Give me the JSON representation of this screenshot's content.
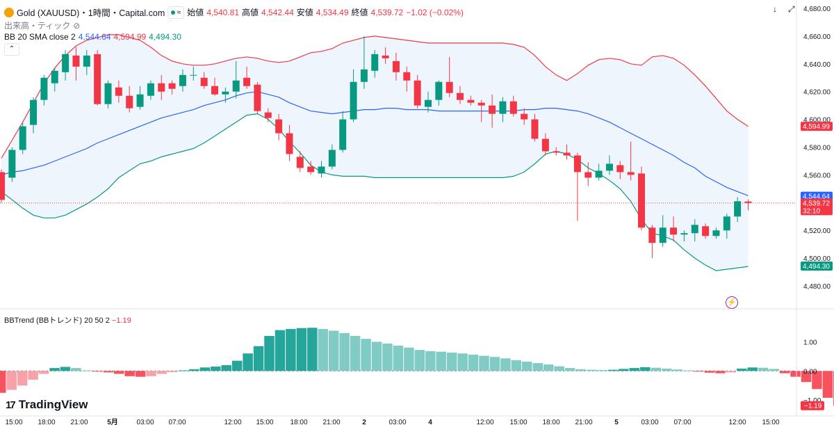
{
  "header": {
    "title": "Gold (XAUUSD)・1時間・Capital.com",
    "open_label": "始値",
    "open_value": "4,540.81",
    "high_label": "高値",
    "high_value": "4,542.44",
    "low_label": "安値",
    "low_value": "4,534.49",
    "close_label": "終値",
    "close_value": "4,539.72",
    "change": "−1.02 (−0.02%)",
    "volume_label": "出来高・ティック",
    "bb_label": "BB 20 SMA close 2",
    "bb_basis": "4,544.64",
    "bb_upper": "4,594.99",
    "bb_lower": "4,494.30",
    "collapse_icon": "chevron-up-icon"
  },
  "indicator": {
    "label": "BBTrend (BBトレンド) 20 50 2",
    "value": "−1.19"
  },
  "branding": {
    "logo_text": "TradingView"
  },
  "colors": {
    "up": "#089981",
    "down": "#f23645",
    "basis": "#2962ff",
    "upper": "#f23645",
    "lower": "#089981",
    "band_fill": "#eef5fc"
  },
  "chart_data": [
    {
      "type": "candlestick",
      "title": "Gold (XAUUSD)・1時間・Capital.com",
      "y_ticks": [
        "4,480.00",
        "4,500.00",
        "4,520.00",
        "4,540.00",
        "4,560.00",
        "4,580.00",
        "4,600.00",
        "4,620.00",
        "4,640.00",
        "4,660.00",
        "4,680.00"
      ],
      "ylim": [
        4473,
        4682
      ],
      "x_ticks": [
        "15:00",
        "18:00",
        "21:00",
        "5月",
        "03:00",
        "07:00",
        "12:00",
        "15:00",
        "18:00",
        "21:00",
        "2",
        "03:00",
        "4",
        "12:00",
        "15:00",
        "18:00",
        "21:00",
        "5",
        "03:00",
        "07:00",
        "12:00",
        "15:00"
      ],
      "price_labels": [
        {
          "name": "upper",
          "value": 4594.99,
          "text": "4,594.99"
        },
        {
          "name": "basis",
          "value": 4544.64,
          "text": "4,544.64"
        },
        {
          "name": "last",
          "value": 4539.72,
          "text": "4,539.72",
          "sub": "32:10"
        },
        {
          "name": "lower",
          "value": 4494.3,
          "text": "4,494.30"
        }
      ],
      "ohlc": [
        [
          4562,
          4564,
          4540,
          4542
        ],
        [
          4558,
          4580,
          4555,
          4578
        ],
        [
          4578,
          4598,
          4575,
          4595
        ],
        [
          4596,
          4616,
          4590,
          4614
        ],
        [
          4614,
          4632,
          4610,
          4630
        ],
        [
          4626,
          4637,
          4620,
          4635
        ],
        [
          4634,
          4650,
          4628,
          4647
        ],
        [
          4646,
          4652,
          4628,
          4638
        ],
        [
          4638,
          4650,
          4632,
          4646
        ],
        [
          4647,
          4650,
          4610,
          4611
        ],
        [
          4611,
          4628,
          4608,
          4626
        ],
        [
          4623,
          4628,
          4612,
          4617
        ],
        [
          4617,
          4624,
          4605,
          4608
        ],
        [
          4609,
          4624,
          4607,
          4618
        ],
        [
          4617,
          4628,
          4614,
          4626
        ],
        [
          4626,
          4632,
          4614,
          4620
        ],
        [
          4626,
          4628,
          4618,
          4622
        ],
        [
          4624,
          4636,
          4620,
          4632
        ],
        [
          4632,
          4638,
          4628,
          4632
        ],
        [
          4630,
          4634,
          4622,
          4624
        ],
        [
          4624,
          4630,
          4617,
          4618
        ],
        [
          4618,
          4623,
          4612,
          4620
        ],
        [
          4620,
          4642,
          4615,
          4628
        ],
        [
          4630,
          4638,
          4622,
          4624
        ],
        [
          4625,
          4627,
          4604,
          4606
        ],
        [
          4605,
          4608,
          4598,
          4601
        ],
        [
          4600,
          4604,
          4585,
          4590
        ],
        [
          4590,
          4596,
          4570,
          4575
        ],
        [
          4573,
          4577,
          4562,
          4565
        ],
        [
          4566,
          4570,
          4560,
          4562
        ],
        [
          4561,
          4570,
          4558,
          4566
        ],
        [
          4566,
          4582,
          4564,
          4578
        ],
        [
          4578,
          4606,
          4576,
          4600
        ],
        [
          4600,
          4636,
          4598,
          4627
        ],
        [
          4627,
          4660,
          4622,
          4636
        ],
        [
          4635,
          4650,
          4630,
          4647
        ],
        [
          4646,
          4652,
          4640,
          4644
        ],
        [
          4642,
          4648,
          4628,
          4634
        ],
        [
          4634,
          4638,
          4620,
          4628
        ],
        [
          4628,
          4632,
          4608,
          4610
        ],
        [
          4609,
          4620,
          4605,
          4614
        ],
        [
          4614,
          4628,
          4610,
          4627
        ],
        [
          4627,
          4645,
          4616,
          4619
        ],
        [
          4619,
          4624,
          4611,
          4614
        ],
        [
          4614,
          4617,
          4610,
          4612
        ],
        [
          4612,
          4614,
          4598,
          4610
        ],
        [
          4610,
          4618,
          4594,
          4604
        ],
        [
          4604,
          4616,
          4598,
          4613
        ],
        [
          4613,
          4617,
          4602,
          4604
        ],
        [
          4604,
          4608,
          4596,
          4600
        ],
        [
          4600,
          4604,
          4584,
          4586
        ],
        [
          4586,
          4590,
          4574,
          4577
        ],
        [
          4577,
          4580,
          4574,
          4576
        ],
        [
          4576,
          4582,
          4571,
          4574
        ],
        [
          4574,
          4576,
          4527,
          4562
        ],
        [
          4562,
          4569,
          4552,
          4558
        ],
        [
          4558,
          4568,
          4556,
          4563
        ],
        [
          4563,
          4574,
          4560,
          4568
        ],
        [
          4567,
          4570,
          4557,
          4562
        ],
        [
          4562,
          4584,
          4556,
          4560
        ],
        [
          4561,
          4566,
          4520,
          4522
        ],
        [
          4522,
          4524,
          4500,
          4511
        ],
        [
          4511,
          4531,
          4508,
          4522
        ],
        [
          4522,
          4530,
          4512,
          4517
        ],
        [
          4517,
          4520,
          4512,
          4518
        ],
        [
          4518,
          4528,
          4512,
          4524
        ],
        [
          4523,
          4525,
          4514,
          4516
        ],
        [
          4516,
          4522,
          4514,
          4520
        ],
        [
          4520,
          4532,
          4514,
          4530
        ],
        [
          4530,
          4544,
          4526,
          4541
        ],
        [
          4540.81,
          4542.44,
          4534.49,
          4539.72
        ]
      ],
      "bb_upper": [
        4572,
        4585,
        4598,
        4612,
        4626,
        4637,
        4646,
        4653,
        4657,
        4659,
        4661,
        4661,
        4659,
        4657,
        4652,
        4646,
        4642,
        4640,
        4639,
        4639,
        4640,
        4642,
        4644,
        4645,
        4644,
        4642,
        4641,
        4642,
        4645,
        4648,
        4649,
        4651,
        4655,
        4657,
        4659,
        4660,
        4659,
        4658,
        4657,
        4656,
        4655,
        4655,
        4655,
        4655,
        4655,
        4655,
        4655,
        4655,
        4654,
        4652,
        4646,
        4638,
        4632,
        4628,
        4633,
        4639,
        4643,
        4644,
        4643,
        4640,
        4639,
        4645,
        4646,
        4644,
        4639,
        4632,
        4624,
        4615,
        4606,
        4600,
        4595
      ],
      "bb_basis": [
        4560,
        4562,
        4563,
        4565,
        4567,
        4570,
        4573,
        4576,
        4579,
        4583,
        4586,
        4589,
        4592,
        4595,
        4598,
        4601,
        4603,
        4605,
        4607,
        4610,
        4612,
        4614,
        4617,
        4619,
        4620,
        4618,
        4616,
        4612,
        4609,
        4606,
        4605,
        4604,
        4605,
        4606,
        4607,
        4607,
        4608,
        4608,
        4607,
        4607,
        4607,
        4606,
        4606,
        4606,
        4606,
        4606,
        4606,
        4606,
        4606,
        4607,
        4607,
        4608,
        4608,
        4607,
        4606,
        4604,
        4601,
        4598,
        4594,
        4590,
        4586,
        4582,
        4578,
        4574,
        4569,
        4565,
        4559,
        4555,
        4551,
        4548,
        4545
      ],
      "bb_lower": [
        4548,
        4542,
        4536,
        4531,
        4529,
        4529,
        4531,
        4535,
        4539,
        4544,
        4550,
        4558,
        4563,
        4568,
        4570,
        4573,
        4575,
        4577,
        4579,
        4583,
        4588,
        4593,
        4598,
        4603,
        4604,
        4600,
        4593,
        4584,
        4576,
        4567,
        4562,
        4560,
        4559,
        4559,
        4559,
        4558,
        4558,
        4558,
        4558,
        4558,
        4558,
        4558,
        4558,
        4558,
        4558,
        4558,
        4558,
        4558,
        4559,
        4562,
        4568,
        4575,
        4577,
        4575,
        4571,
        4565,
        4561,
        4556,
        4550,
        4541,
        4528,
        4518,
        4516,
        4513,
        4506,
        4500,
        4495,
        4491,
        4492,
        4493,
        4494
      ]
    },
    {
      "type": "bar",
      "title": "BBTrend (BBトレンド) 20 50 2",
      "y_ticks": [
        "1.00",
        "0.00",
        "−1.00"
      ],
      "ylim": [
        -1.4,
        1.7
      ],
      "last_label": "−1.19",
      "values": [
        -0.75,
        -0.65,
        -0.5,
        -0.3,
        -0.1,
        0.1,
        0.14,
        0.1,
        0.02,
        -0.02,
        -0.05,
        -0.1,
        -0.18,
        -0.2,
        -0.18,
        -0.1,
        -0.04,
        0.02,
        0.06,
        0.12,
        0.15,
        0.2,
        0.35,
        0.6,
        0.85,
        1.2,
        1.4,
        1.44,
        1.47,
        1.48,
        1.44,
        1.38,
        1.3,
        1.2,
        1.1,
        1.0,
        0.94,
        0.87,
        0.8,
        0.72,
        0.68,
        0.66,
        0.63,
        0.6,
        0.56,
        0.52,
        0.48,
        0.43,
        0.37,
        0.32,
        0.27,
        0.22,
        0.16,
        0.1,
        0.06,
        0.04,
        0.03,
        0.04,
        0.07,
        0.1,
        0.13,
        0.11,
        0.08,
        0.05,
        0.02,
        -0.02,
        -0.06,
        -0.08,
        -0.05,
        0.08,
        0.12,
        0.11,
        0.07,
        -0.08,
        -0.2,
        -0.38,
        -0.62,
        -0.92,
        -1.19
      ]
    }
  ]
}
